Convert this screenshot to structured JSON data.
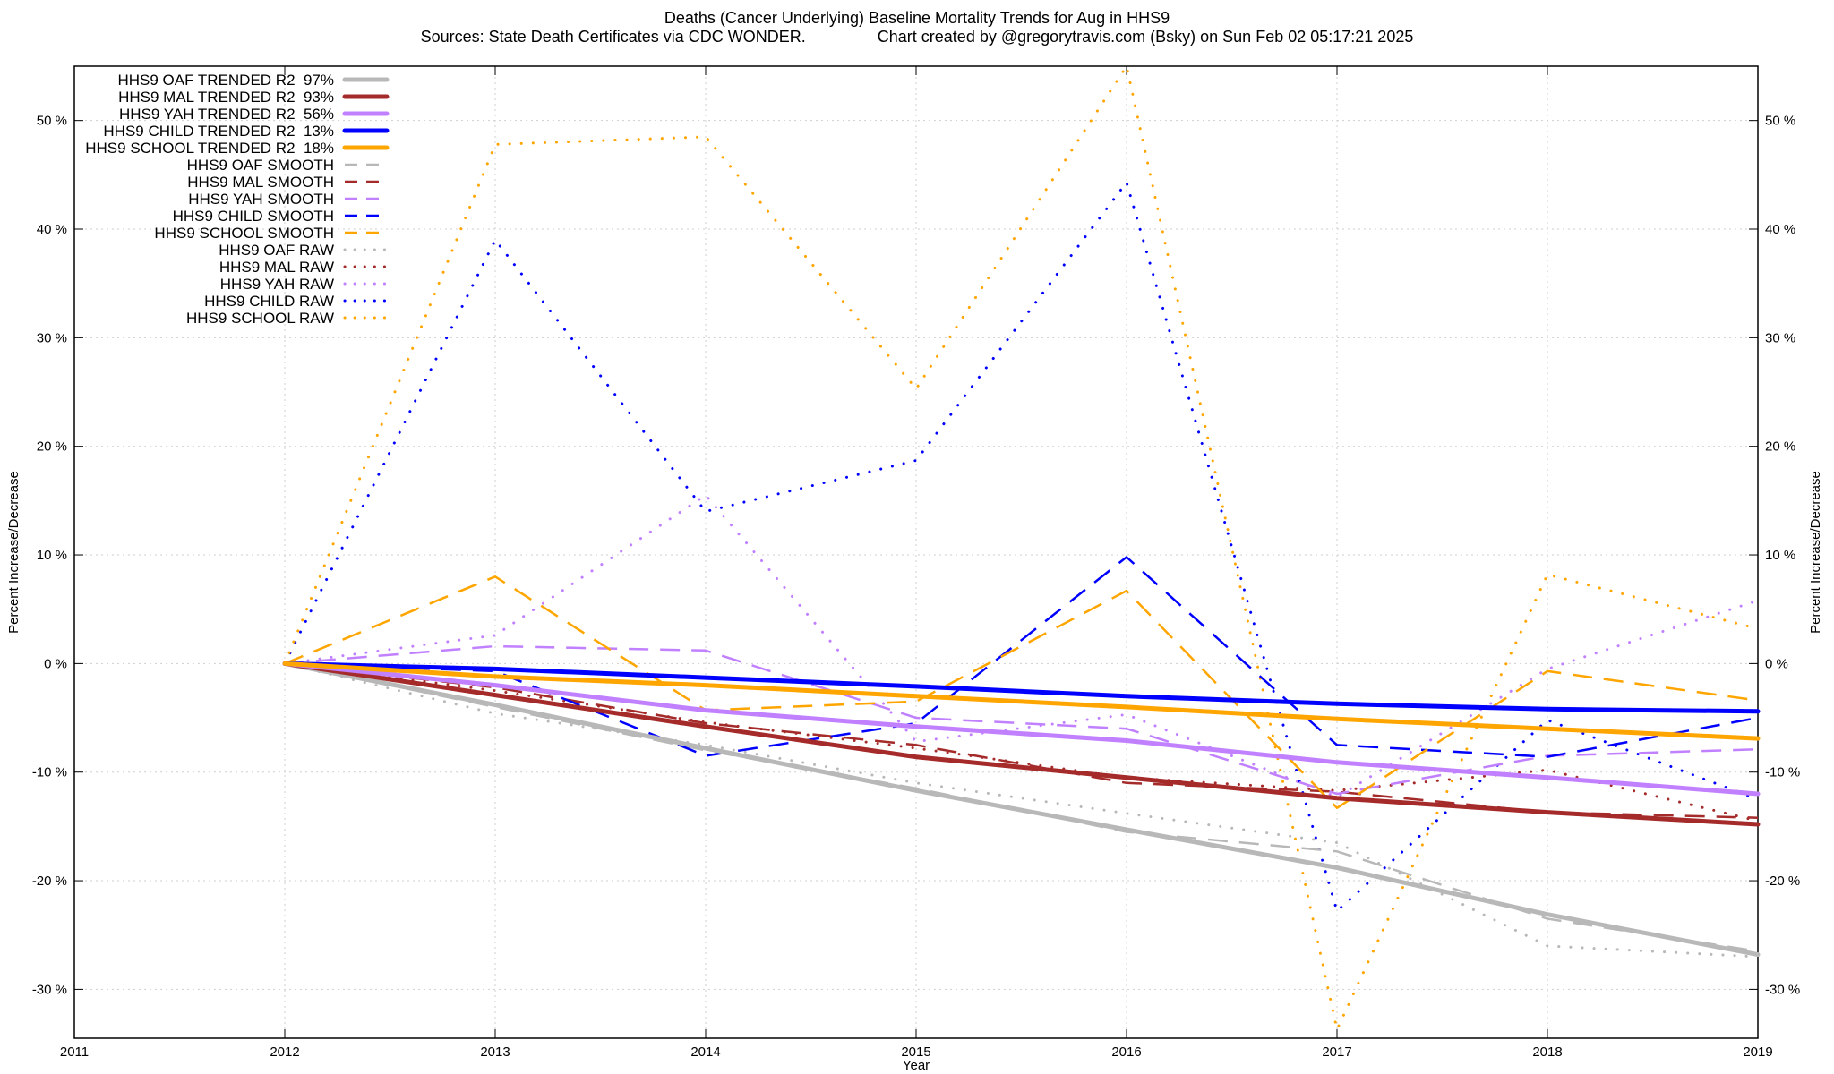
{
  "header": {
    "title_line1": "Deaths (Cancer Underlying)  Baseline Mortality Trends for Aug in HHS9",
    "title_line2": "Sources: State Death Certificates via CDC WONDER.                Chart created by @gregorytravis.com (Bsky) on Sun Feb 02 05:17:21 2025"
  },
  "chart_data": {
    "type": "line",
    "title": "Deaths (Cancer Underlying)  Baseline Mortality Trends for Aug in HHS9",
    "subtitle": "Sources: State Death Certificates via CDC WONDER.                Chart created by @gregorytravis.com (Bsky) on Sun Feb 02 05:17:21 2025",
    "xlabel": "Year",
    "ylabel": "Percent Increase/Decrease",
    "xlim": [
      2011,
      2019
    ],
    "ylim": [
      -34.5,
      55
    ],
    "x_ticks": [
      2011,
      2012,
      2013,
      2014,
      2015,
      2016,
      2017,
      2018,
      2019
    ],
    "y_ticks": [
      -30,
      -20,
      -10,
      0,
      10,
      20,
      30,
      40,
      50
    ],
    "y_tick_labels": [
      "-30 %",
      "-20 %",
      "-10 %",
      "0 %",
      "10 %",
      "20 %",
      "30 %",
      "40 %",
      "50 %"
    ],
    "grid": true,
    "legend_position": "top-left",
    "x": [
      2012,
      2013,
      2014,
      2015,
      2016,
      2017,
      2018,
      2019
    ],
    "series": [
      {
        "name": "HHS9 OAF TRENDED R2  97%",
        "style": "solid",
        "color": "#b8b8b8",
        "values": [
          0,
          -3.8,
          -7.8,
          -11.7,
          -15.3,
          -18.8,
          -23.1,
          -26.8
        ]
      },
      {
        "name": "HHS9 MAL TRENDED R2  93%",
        "style": "solid",
        "color": "#a52a2a",
        "values": [
          0,
          -2.9,
          -5.8,
          -8.6,
          -10.5,
          -12.4,
          -13.7,
          -14.8
        ]
      },
      {
        "name": "HHS9 YAH TRENDED R2  56%",
        "style": "solid",
        "color": "#c080ff",
        "values": [
          0,
          -2.0,
          -4.3,
          -5.8,
          -7.1,
          -9.1,
          -10.5,
          -12.0
        ]
      },
      {
        "name": "HHS9 CHILD TRENDED R2  13%",
        "style": "solid",
        "color": "#0000ff",
        "values": [
          0,
          -0.5,
          -1.3,
          -2.1,
          -3.0,
          -3.7,
          -4.2,
          -4.4
        ]
      },
      {
        "name": "HHS9 SCHOOL TRENDED R2  18%",
        "style": "solid",
        "color": "#ffa500",
        "values": [
          0,
          -1.2,
          -2.0,
          -3.0,
          -4.0,
          -5.1,
          -6.0,
          -6.9
        ]
      },
      {
        "name": "HHS9 OAF SMOOTH",
        "style": "dash",
        "color": "#b8b8b8",
        "values": [
          0,
          -4.0,
          -8.0,
          -11.5,
          -15.5,
          -17.3,
          -23.5,
          -26.5
        ]
      },
      {
        "name": "HHS9 MAL SMOOTH",
        "style": "dash",
        "color": "#a52a2a",
        "values": [
          0,
          -2.2,
          -5.5,
          -7.5,
          -11.0,
          -11.8,
          -13.7,
          -14.2
        ]
      },
      {
        "name": "HHS9 YAH SMOOTH",
        "style": "dash",
        "color": "#c080ff",
        "values": [
          0,
          1.6,
          1.2,
          -5.0,
          -6.0,
          -12.0,
          -8.5,
          -7.9
        ]
      },
      {
        "name": "HHS9 CHILD SMOOTH",
        "style": "dash",
        "color": "#0000ff",
        "values": [
          0,
          -0.7,
          -8.5,
          -5.5,
          9.8,
          -7.5,
          -8.6,
          -5.0
        ]
      },
      {
        "name": "HHS9 SCHOOL SMOOTH",
        "style": "dash",
        "color": "#ffa500",
        "values": [
          0,
          8.0,
          -4.3,
          -3.5,
          6.7,
          -13.3,
          -0.7,
          -3.4
        ]
      },
      {
        "name": "HHS9 OAF RAW",
        "style": "dot",
        "color": "#b8b8b8",
        "values": [
          0,
          -4.6,
          -7.5,
          -11.0,
          -13.8,
          -16.5,
          -26.0,
          -27.0
        ]
      },
      {
        "name": "HHS9 MAL RAW",
        "style": "dot",
        "color": "#a52a2a",
        "values": [
          0,
          -2.5,
          -5.4,
          -7.8,
          -10.5,
          -11.7,
          -9.8,
          -14.5
        ]
      },
      {
        "name": "HHS9 YAH RAW",
        "style": "dot",
        "color": "#c080ff",
        "values": [
          0,
          2.6,
          15.5,
          -7.2,
          -4.7,
          -12.3,
          -0.5,
          5.8
        ]
      },
      {
        "name": "HHS9 CHILD RAW",
        "style": "dot",
        "color": "#0000ff",
        "values": [
          0,
          39.0,
          14.0,
          18.7,
          44.3,
          -22.8,
          -5.2,
          -12.5
        ]
      },
      {
        "name": "HHS9 SCHOOL RAW",
        "style": "dot",
        "color": "#ffa500",
        "values": [
          0,
          47.8,
          48.5,
          25.3,
          55.0,
          -33.7,
          8.2,
          3.2
        ]
      }
    ]
  }
}
